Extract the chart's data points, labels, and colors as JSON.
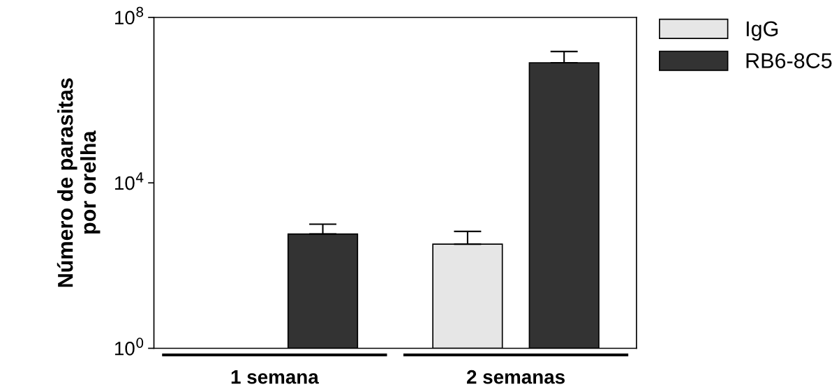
{
  "chart_data": {
    "type": "bar",
    "ylabel": "Número de parasitas\npor orelha",
    "categories": [
      "1 semana",
      "2 semanas"
    ],
    "series": [
      {
        "name": "IgG",
        "color": "#e6e6e6",
        "values": [
          null,
          330
        ],
        "errors": [
          null,
          [
            330,
            670
          ]
        ]
      },
      {
        "name": "RB6-8C5",
        "color": "#333333",
        "values": [
          580,
          8000000
        ],
        "errors": [
          [
            580,
            1000
          ],
          [
            8000000,
            15000000
          ]
        ]
      }
    ],
    "log": "y",
    "ylim": [
      1,
      100000000
    ],
    "yticks": [
      {
        "value": 1,
        "label": "10$^{0}$"
      },
      {
        "value": 10000,
        "label": "10$^{4}$"
      },
      {
        "value": 100000000,
        "label": "10$^{8}$"
      }
    ],
    "grid": false,
    "legend": "top right"
  }
}
